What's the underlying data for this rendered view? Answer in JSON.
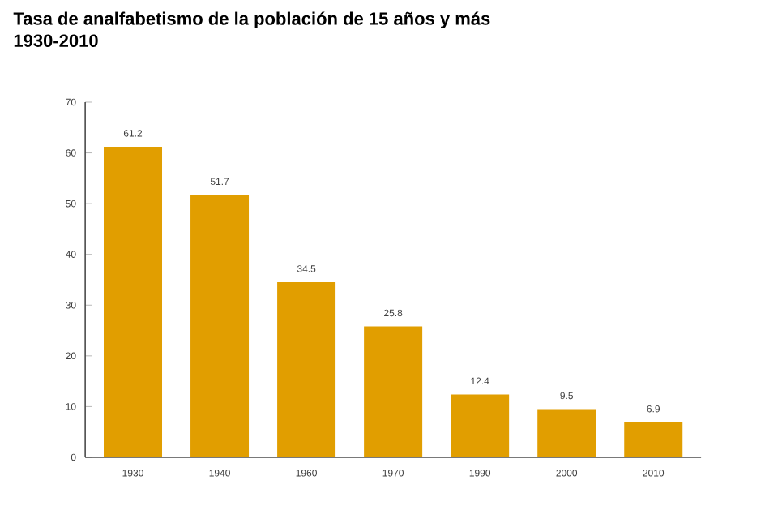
{
  "chart_data": {
    "type": "bar",
    "title": "Tasa de analfabetismo  de la población de 15 años y más",
    "subtitle": "1930-2010",
    "categories": [
      "1930",
      "1940",
      "1960",
      "1970",
      "1990",
      "2000",
      "2010"
    ],
    "values": [
      61.2,
      51.7,
      34.5,
      25.8,
      12.4,
      9.5,
      6.9
    ],
    "color": "#e19e00",
    "ylim": [
      0,
      70
    ],
    "yticks": [
      0,
      10,
      20,
      30,
      40,
      50,
      60,
      70
    ],
    "data_labels": true,
    "grid": false
  }
}
